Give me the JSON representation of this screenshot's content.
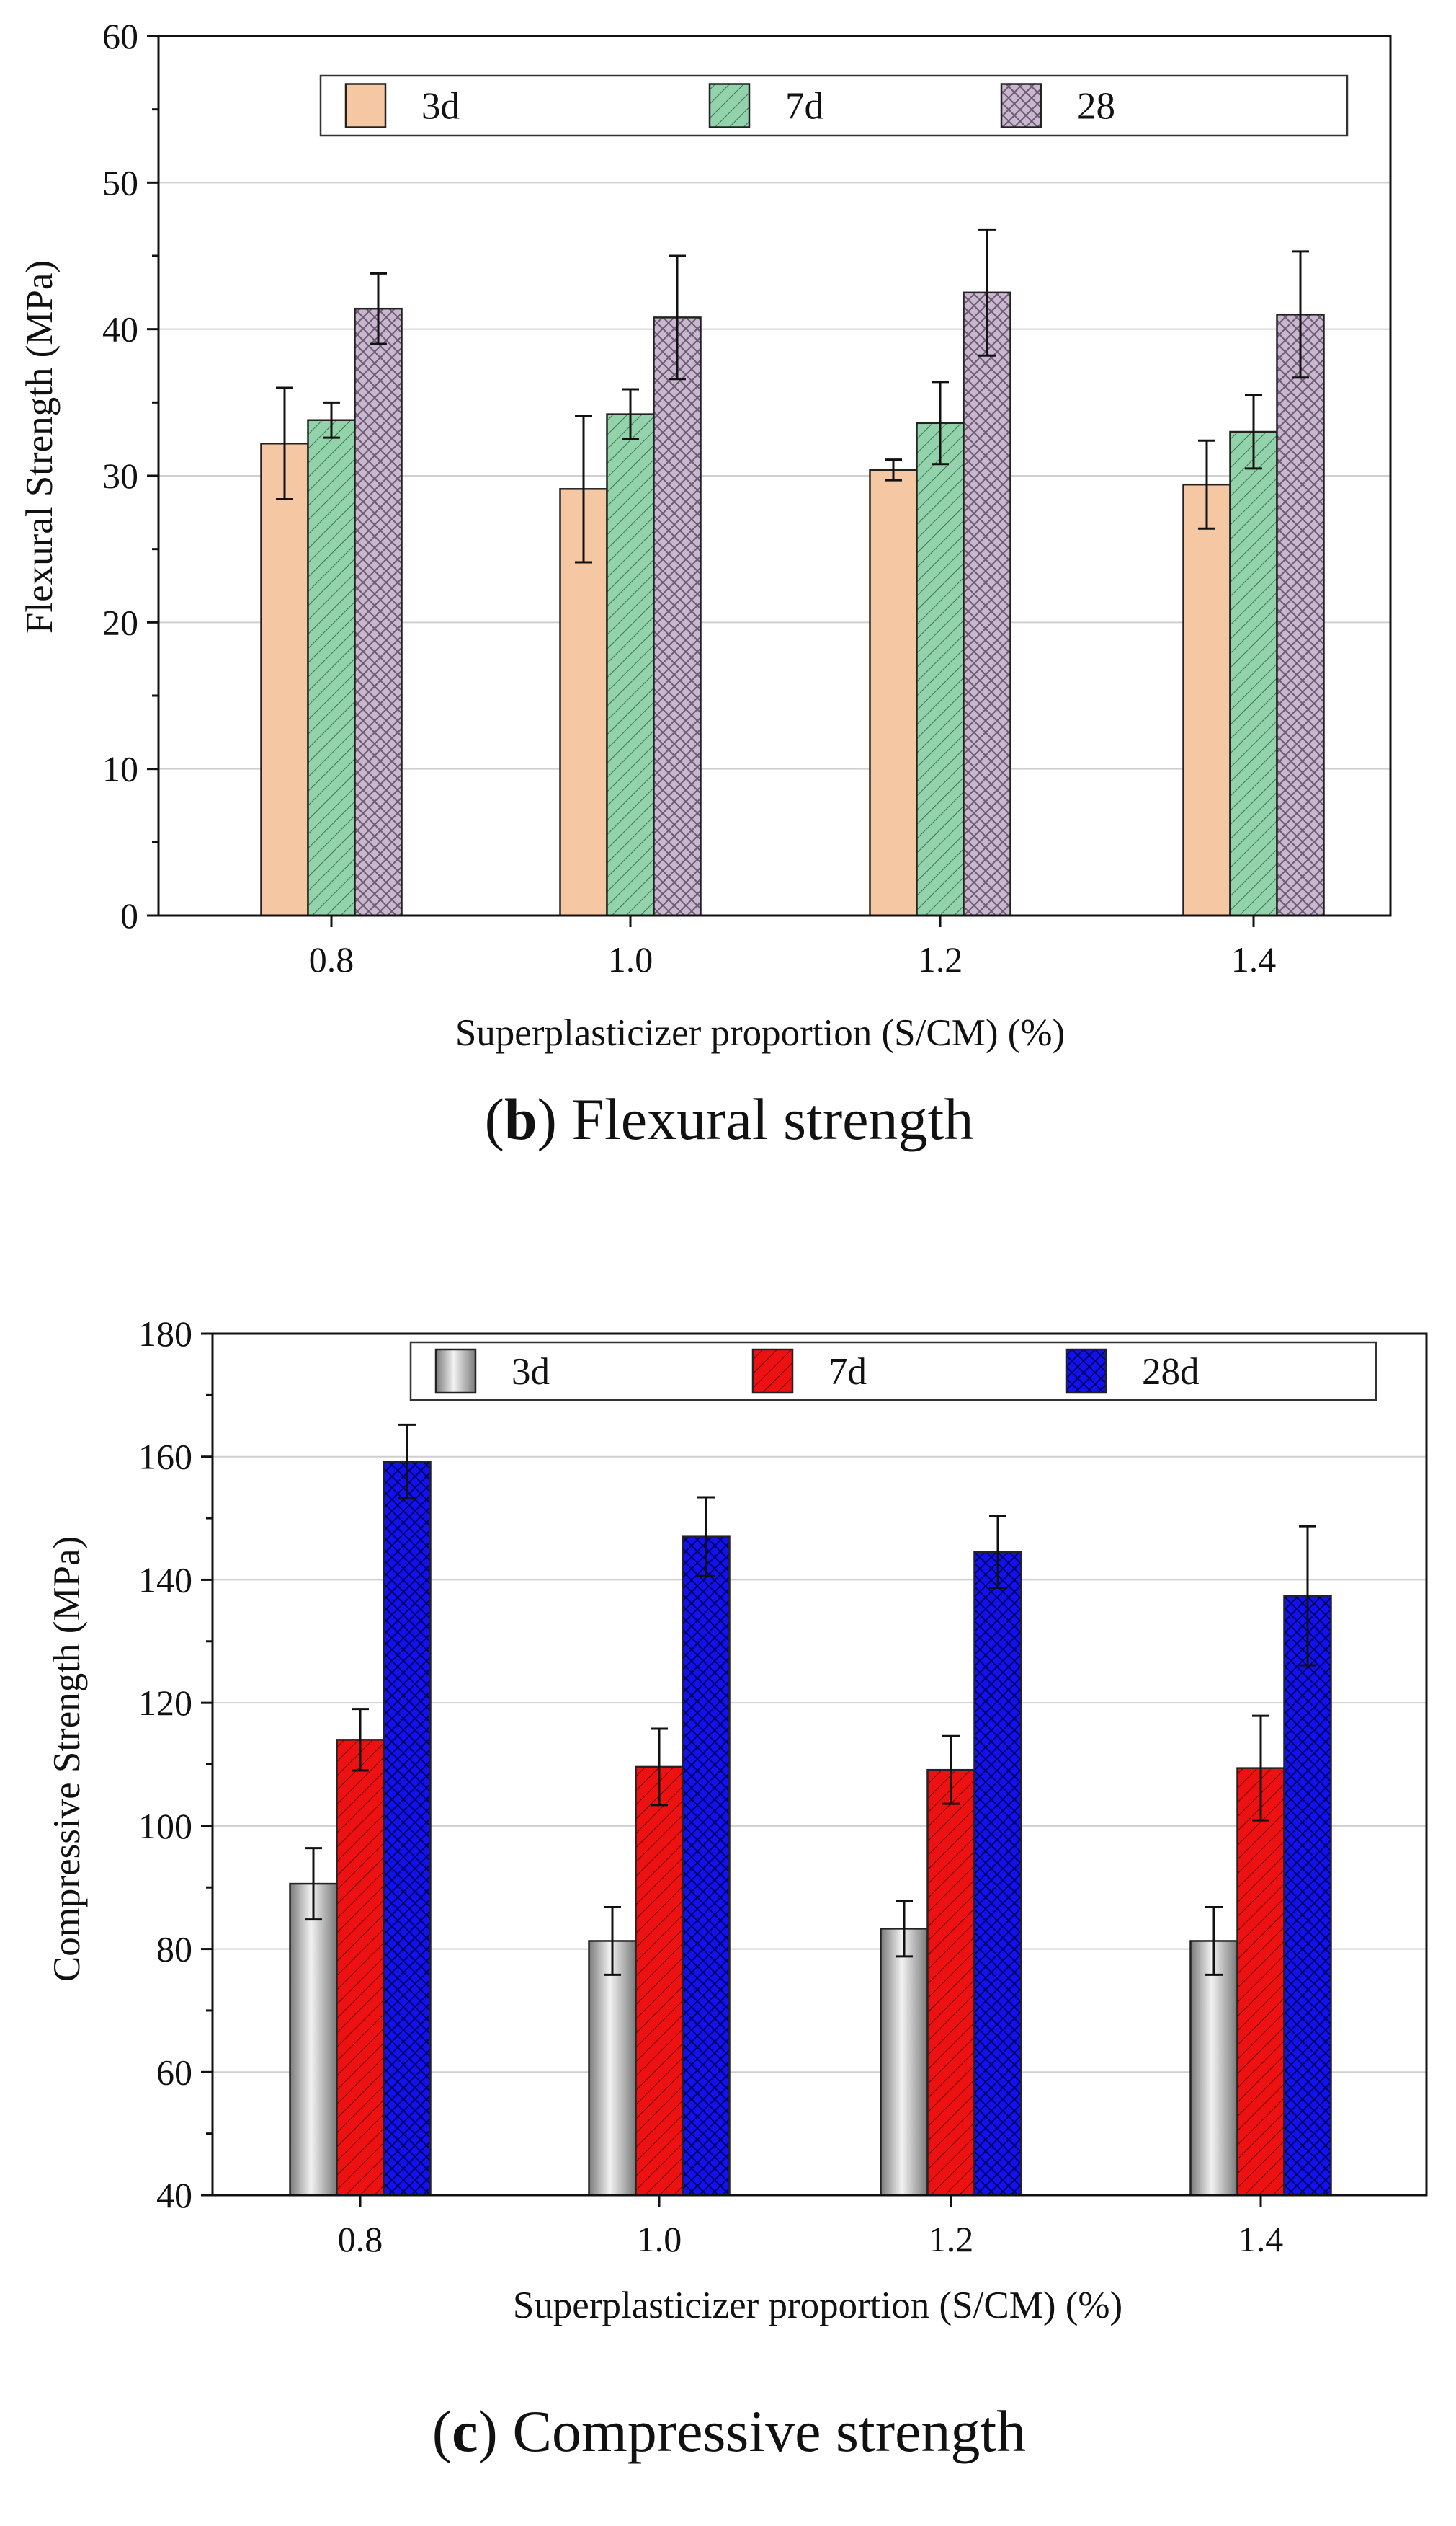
{
  "chart_data": [
    {
      "type": "bar",
      "panel": "b",
      "title": "Flexural strength",
      "caption_letter": "b",
      "categories": [
        "0.8",
        "1.0",
        "1.2",
        "1.4"
      ],
      "xlabel": "Superplasticizer proportion (S/CM)  (%)",
      "ylabel": "Flexural Strength (MPa)",
      "ylim": [
        0,
        60
      ],
      "yticks": [
        "0",
        "10",
        "20",
        "30",
        "40",
        "50",
        "60"
      ],
      "grid": true,
      "legend_position": "top",
      "series": [
        {
          "name": "3d",
          "values": [
            32.2,
            29.1,
            30.4,
            29.4
          ],
          "errors": [
            3.8,
            5.0,
            0.7,
            3.0
          ],
          "color": "#F6C7A3",
          "pattern": "none"
        },
        {
          "name": "7d",
          "values": [
            33.8,
            34.2,
            33.6,
            33.0
          ],
          "errors": [
            1.2,
            1.7,
            2.8,
            2.5
          ],
          "color": "#93D3AC",
          "pattern": "diagonal"
        },
        {
          "name": "28",
          "values": [
            41.4,
            40.8,
            42.5,
            41.0
          ],
          "errors": [
            2.4,
            4.2,
            4.3,
            4.3
          ],
          "color": "#C9B7CF",
          "pattern": "crosshatch"
        }
      ]
    },
    {
      "type": "bar",
      "panel": "c",
      "title": "Compressive strength",
      "caption_letter": "c",
      "categories": [
        "0.8",
        "1.0",
        "1.2",
        "1.4"
      ],
      "xlabel": "Superplasticizer proportion (S/CM) (%)",
      "ylabel": "Compressive Strength (MPa)",
      "ylim": [
        40,
        180
      ],
      "yticks": [
        "40",
        "60",
        "80",
        "100",
        "120",
        "140",
        "160",
        "180"
      ],
      "grid": true,
      "legend_position": "top",
      "series": [
        {
          "name": "3d",
          "values": [
            90.6,
            81.3,
            83.3,
            81.3
          ],
          "errors": [
            5.8,
            5.5,
            4.5,
            5.5
          ],
          "color": "#B5B5B5",
          "pattern": "none"
        },
        {
          "name": "7d",
          "values": [
            114.0,
            109.6,
            109.1,
            109.4
          ],
          "errors": [
            5.0,
            6.2,
            5.5,
            8.5
          ],
          "color": "#EE1111",
          "pattern": "diagonal"
        },
        {
          "name": "28d",
          "values": [
            159.2,
            147.0,
            144.5,
            137.4
          ],
          "errors": [
            6.0,
            6.4,
            5.8,
            11.3
          ],
          "color": "#1212EE",
          "pattern": "crosshatch"
        }
      ]
    }
  ]
}
